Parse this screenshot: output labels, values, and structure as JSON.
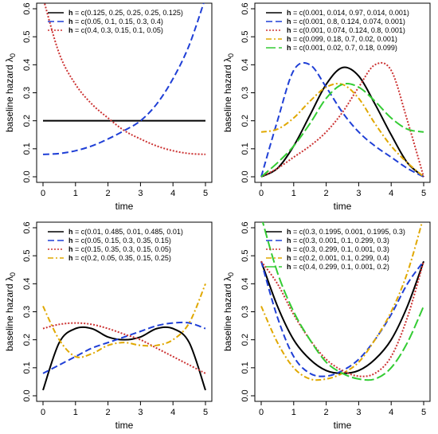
{
  "chart_data": [
    {
      "type": "line",
      "xlabel": "time",
      "ylabel": "baseline hazard λ",
      "ylabel_subscript": "0",
      "xlim": [
        0,
        5
      ],
      "ylim": [
        0,
        0.6
      ],
      "x_ticks": [
        0,
        1,
        2,
        3,
        4,
        5
      ],
      "y_ticks": [
        0.0,
        0.1,
        0.2,
        0.3,
        0.4,
        0.5,
        0.6
      ],
      "legend": "top-left",
      "x": [
        0,
        0.5,
        1,
        1.5,
        2,
        2.5,
        3,
        3.5,
        4,
        4.5,
        5
      ],
      "series": [
        {
          "name": "c(0.125, 0.25, 0.25, 0.25, 0.125)",
          "color": "#000000",
          "style": "solid",
          "values": [
            0.2,
            0.2,
            0.2,
            0.2,
            0.2,
            0.2,
            0.2,
            0.2,
            0.2,
            0.2,
            0.2
          ]
        },
        {
          "name": "c(0.05, 0.1, 0.15, 0.3, 0.4)",
          "color": "#1f3fd6",
          "style": "dashed",
          "values": [
            0.08,
            0.083,
            0.093,
            0.11,
            0.135,
            0.165,
            0.2,
            0.26,
            0.35,
            0.47,
            0.64
          ]
        },
        {
          "name": "c(0.4, 0.3, 0.15, 0.1, 0.05)",
          "color": "#cc3333",
          "style": "dotted",
          "values": [
            0.64,
            0.44,
            0.33,
            0.26,
            0.21,
            0.165,
            0.135,
            0.11,
            0.093,
            0.083,
            0.08
          ]
        }
      ]
    },
    {
      "type": "line",
      "xlabel": "time",
      "ylabel": "baseline hazard λ",
      "ylabel_subscript": "0",
      "xlim": [
        0,
        5
      ],
      "ylim": [
        0,
        0.6
      ],
      "x_ticks": [
        0,
        1,
        2,
        3,
        4,
        5
      ],
      "y_ticks": [
        0.0,
        0.1,
        0.2,
        0.3,
        0.4,
        0.5,
        0.6
      ],
      "legend": "top-left",
      "x": [
        0,
        0.5,
        1,
        1.5,
        2,
        2.5,
        3,
        3.5,
        4,
        4.5,
        5
      ],
      "series": [
        {
          "name": "c(0.001, 0.014, 0.97, 0.014, 0.001)",
          "color": "#000000",
          "style": "solid",
          "values": [
            0.0,
            0.03,
            0.11,
            0.22,
            0.33,
            0.39,
            0.36,
            0.26,
            0.15,
            0.05,
            0.0
          ]
        },
        {
          "name": "c(0.001, 0.8, 0.124, 0.074, 0.001)",
          "color": "#1f3fd6",
          "style": "dashed",
          "values": [
            0.0,
            0.2,
            0.38,
            0.4,
            0.32,
            0.23,
            0.16,
            0.11,
            0.07,
            0.03,
            0.0
          ]
        },
        {
          "name": "c(0.001, 0.074, 0.124, 0.8, 0.001)",
          "color": "#cc3333",
          "style": "dotted",
          "values": [
            0.0,
            0.03,
            0.07,
            0.11,
            0.16,
            0.23,
            0.32,
            0.4,
            0.38,
            0.2,
            0.0
          ]
        },
        {
          "name": "c(0.099, 0.18, 0.7, 0.02, 0.001)",
          "color": "#e0a800",
          "style": "dotdash",
          "values": [
            0.16,
            0.17,
            0.21,
            0.27,
            0.32,
            0.33,
            0.28,
            0.19,
            0.11,
            0.05,
            0.0
          ]
        },
        {
          "name": "c(0.001, 0.02, 0.7, 0.18, 0.099)",
          "color": "#33cc33",
          "style": "longdash",
          "values": [
            0.0,
            0.05,
            0.11,
            0.19,
            0.28,
            0.33,
            0.32,
            0.27,
            0.21,
            0.17,
            0.16
          ]
        }
      ]
    },
    {
      "type": "line",
      "xlabel": "time",
      "ylabel": "baseline hazard λ",
      "ylabel_subscript": "0",
      "xlim": [
        0,
        5
      ],
      "ylim": [
        0,
        0.6
      ],
      "x_ticks": [
        0,
        1,
        2,
        3,
        4,
        5
      ],
      "y_ticks": [
        0.0,
        0.1,
        0.2,
        0.3,
        0.4,
        0.5,
        0.6
      ],
      "legend": "top-left",
      "x": [
        0,
        0.5,
        1,
        1.5,
        2,
        2.5,
        3,
        3.5,
        4,
        4.5,
        5
      ],
      "series": [
        {
          "name": "c(0.01, 0.485, 0.01, 0.485, 0.01)",
          "color": "#000000",
          "style": "solid",
          "values": [
            0.02,
            0.19,
            0.24,
            0.24,
            0.21,
            0.2,
            0.21,
            0.24,
            0.24,
            0.19,
            0.02
          ]
        },
        {
          "name": "c(0.05, 0.15, 0.3, 0.35, 0.15)",
          "color": "#1f3fd6",
          "style": "dashed",
          "values": [
            0.08,
            0.11,
            0.14,
            0.17,
            0.19,
            0.21,
            0.23,
            0.25,
            0.26,
            0.26,
            0.24
          ]
        },
        {
          "name": "c(0.15, 0.35, 0.3, 0.15, 0.05)",
          "color": "#cc3333",
          "style": "dotted",
          "values": [
            0.24,
            0.255,
            0.26,
            0.255,
            0.24,
            0.22,
            0.2,
            0.17,
            0.14,
            0.11,
            0.08
          ]
        },
        {
          "name": "c(0.2, 0.05, 0.35, 0.15, 0.25)",
          "color": "#e0a800",
          "style": "dotdash",
          "values": [
            0.32,
            0.2,
            0.14,
            0.15,
            0.18,
            0.19,
            0.18,
            0.18,
            0.2,
            0.26,
            0.4
          ]
        }
      ]
    },
    {
      "type": "line",
      "xlabel": "time",
      "ylabel": "baseline hazard λ",
      "ylabel_subscript": "0",
      "xlim": [
        0,
        5
      ],
      "ylim": [
        0,
        0.6
      ],
      "x_ticks": [
        0,
        1,
        2,
        3,
        4,
        5
      ],
      "y_ticks": [
        0.0,
        0.1,
        0.2,
        0.3,
        0.4,
        0.5,
        0.6
      ],
      "legend": "top-left",
      "x": [
        0,
        0.5,
        1,
        1.5,
        2,
        2.5,
        3,
        3.5,
        4,
        4.5,
        5
      ],
      "series": [
        {
          "name": "c(0.3, 0.1995, 0.001, 0.1995, 0.3)",
          "color": "#000000",
          "style": "solid",
          "values": [
            0.48,
            0.32,
            0.2,
            0.13,
            0.09,
            0.08,
            0.09,
            0.13,
            0.2,
            0.32,
            0.48
          ]
        },
        {
          "name": "c(0.3, 0.001, 0.1, 0.299, 0.3)",
          "color": "#1f3fd6",
          "style": "dashed",
          "values": [
            0.48,
            0.28,
            0.14,
            0.08,
            0.07,
            0.09,
            0.13,
            0.2,
            0.29,
            0.4,
            0.48
          ]
        },
        {
          "name": "c(0.3, 0.299, 0.1, 0.001, 0.3)",
          "color": "#cc3333",
          "style": "dotted",
          "values": [
            0.48,
            0.4,
            0.29,
            0.2,
            0.13,
            0.09,
            0.07,
            0.08,
            0.14,
            0.28,
            0.48
          ]
        },
        {
          "name": "c(0.2, 0.001, 0.1, 0.299, 0.4)",
          "color": "#e0a800",
          "style": "dotdash",
          "values": [
            0.32,
            0.19,
            0.1,
            0.06,
            0.06,
            0.08,
            0.12,
            0.2,
            0.3,
            0.44,
            0.64
          ]
        },
        {
          "name": "c(0.4, 0.299, 0.1, 0.001, 0.2)",
          "color": "#33cc33",
          "style": "longdash",
          "values": [
            0.64,
            0.44,
            0.3,
            0.2,
            0.12,
            0.08,
            0.06,
            0.06,
            0.1,
            0.19,
            0.32
          ]
        }
      ]
    }
  ],
  "legend_prefix": "h",
  "legend_equals": " = "
}
